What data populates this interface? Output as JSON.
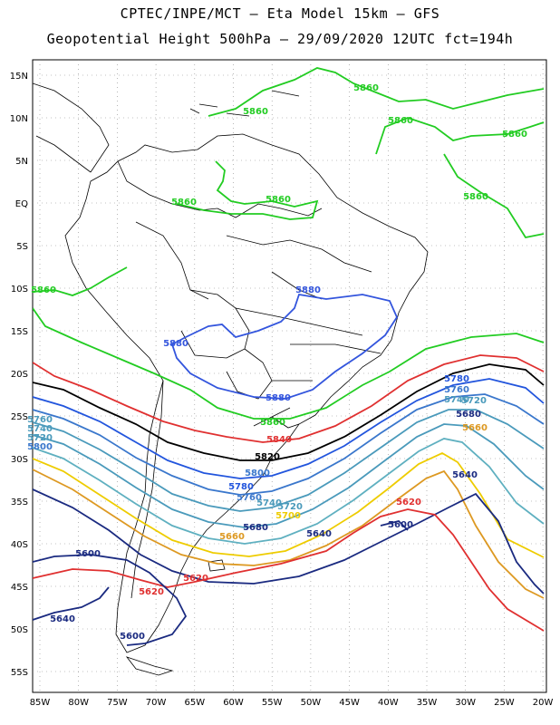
{
  "title_line1": "CPTEC/INPE/MCT –  Eta Model 15km – GFS",
  "title_line2": "Geopotential Height 500hPa – 29/09/2020 12UTC fct=194h",
  "lat_labels": [
    "15N",
    "10N",
    "5N",
    "EQ",
    "5S",
    "10S",
    "15S",
    "20S",
    "25S",
    "30S",
    "35S",
    "40S",
    "45S",
    "50S",
    "55S"
  ],
  "lon_labels": [
    "85W",
    "80W",
    "75W",
    "70W",
    "65W",
    "60W",
    "55W",
    "50W",
    "45W",
    "40W",
    "35W",
    "30W",
    "25W",
    "20W"
  ],
  "contour_labels": [
    {
      "text": "5860",
      "color": "#22cc22"
    },
    {
      "text": "5860",
      "color": "#22cc22"
    },
    {
      "text": "5860",
      "color": "#22cc22"
    },
    {
      "text": "5860",
      "color": "#22cc22"
    },
    {
      "text": "5860",
      "color": "#22cc22"
    },
    {
      "text": "5860",
      "color": "#22cc22"
    },
    {
      "text": "5860",
      "color": "#22cc22"
    },
    {
      "text": "5860",
      "color": "#22cc22"
    },
    {
      "text": "5860",
      "color": "#22cc22"
    },
    {
      "text": "5880",
      "color": "#3355dd"
    },
    {
      "text": "5880",
      "color": "#3355dd"
    },
    {
      "text": "5880",
      "color": "#3355dd"
    },
    {
      "text": "5860",
      "color": "#22cc22"
    },
    {
      "text": "5840",
      "color": "#e03030"
    },
    {
      "text": "5820",
      "color": "#000000"
    },
    {
      "text": "5780",
      "color": "#2255dd"
    },
    {
      "text": "5760",
      "color": "#3a77cc"
    },
    {
      "text": "5740",
      "color": "#4a9abb"
    },
    {
      "text": "5720",
      "color": "#4a9abb"
    },
    {
      "text": "5700",
      "color": "#eecc00"
    },
    {
      "text": "5680",
      "color": "#1a2a80"
    },
    {
      "text": "5660",
      "color": "#dd9922"
    },
    {
      "text": "5640",
      "color": "#1a2a80"
    },
    {
      "text": "5620",
      "color": "#e03030"
    },
    {
      "text": "5600",
      "color": "#1a2a80"
    },
    {
      "text": "5800",
      "color": "#3a77cc"
    },
    {
      "text": "5780",
      "color": "#2255dd"
    },
    {
      "text": "5760",
      "color": "#3a77cc"
    },
    {
      "text": "5740",
      "color": "#4a9abb"
    },
    {
      "text": "5720",
      "color": "#4a9abb"
    },
    {
      "text": "5700",
      "color": "#eecc00"
    },
    {
      "text": "5680",
      "color": "#1a2a80"
    },
    {
      "text": "5660",
      "color": "#dd9922"
    },
    {
      "text": "5640",
      "color": "#1a2a80"
    },
    {
      "text": "5620",
      "color": "#e03030"
    },
    {
      "text": "5600",
      "color": "#1a2a80"
    },
    {
      "text": "5620",
      "color": "#e03030"
    },
    {
      "text": "5600",
      "color": "#1a2a80"
    },
    {
      "text": "5640",
      "color": "#1a2a80"
    },
    {
      "text": "5600",
      "color": "#1a2a80"
    },
    {
      "text": "5760",
      "color": "#4a9abb"
    },
    {
      "text": "5740",
      "color": "#4a9abb"
    },
    {
      "text": "5720",
      "color": "#4a9abb"
    },
    {
      "text": "5800",
      "color": "#3a77cc"
    },
    {
      "text": "5820",
      "color": "#000000"
    }
  ]
}
